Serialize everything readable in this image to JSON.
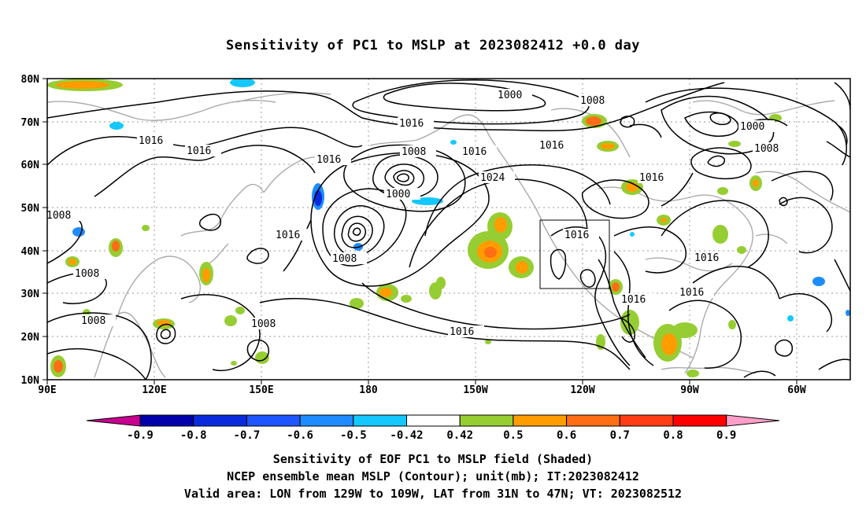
{
  "title": "Sensitivity of PC1 to MSLP at 2023082412 +0.0 day",
  "axes": {
    "lat_labels": [
      "80N",
      "70N",
      "60N",
      "50N",
      "40N",
      "30N",
      "20N",
      "10N"
    ],
    "lon_labels": [
      "90E",
      "120E",
      "150E",
      "180",
      "150W",
      "120W",
      "90W",
      "60W"
    ]
  },
  "contour_labels": [
    "1000",
    "1008",
    "1016",
    "1016",
    "1016",
    "1016",
    "1008",
    "1016",
    "1024",
    "1000",
    "1008",
    "1016",
    "1008",
    "1008",
    "1016",
    "1016",
    "1016",
    "1008",
    "1016",
    "1008",
    "1016",
    "1016",
    "1016",
    "1000",
    "1008",
    "1016",
    "1016",
    "1016",
    "1008"
  ],
  "colorbar": {
    "labels": [
      "-0.9",
      "-0.8",
      "-0.7",
      "-0.6",
      "-0.5",
      "-0.42",
      "0.42",
      "0.5",
      "0.6",
      "0.7",
      "0.8",
      "0.9"
    ],
    "colors": [
      "#0000aa",
      "#0a2bdc",
      "#1e55ff",
      "#1e8cff",
      "#14c8ff",
      "#ffffff",
      "#96cd32",
      "#ff9d00",
      "#ff6e14",
      "#ff3c14",
      "#ff0000"
    ],
    "low_arrow_color": "#c80090",
    "high_arrow_color": "#ff9ec8"
  },
  "captions": [
    "Sensitivity of EOF PC1 to MSLP field (Shaded)",
    "NCEP ensemble mean MSLP (Contour); unit(mb); IT:2023082412",
    "Valid area: LON from 129W to 109W, LAT from 31N to 47N; VT: 2023082512"
  ]
}
